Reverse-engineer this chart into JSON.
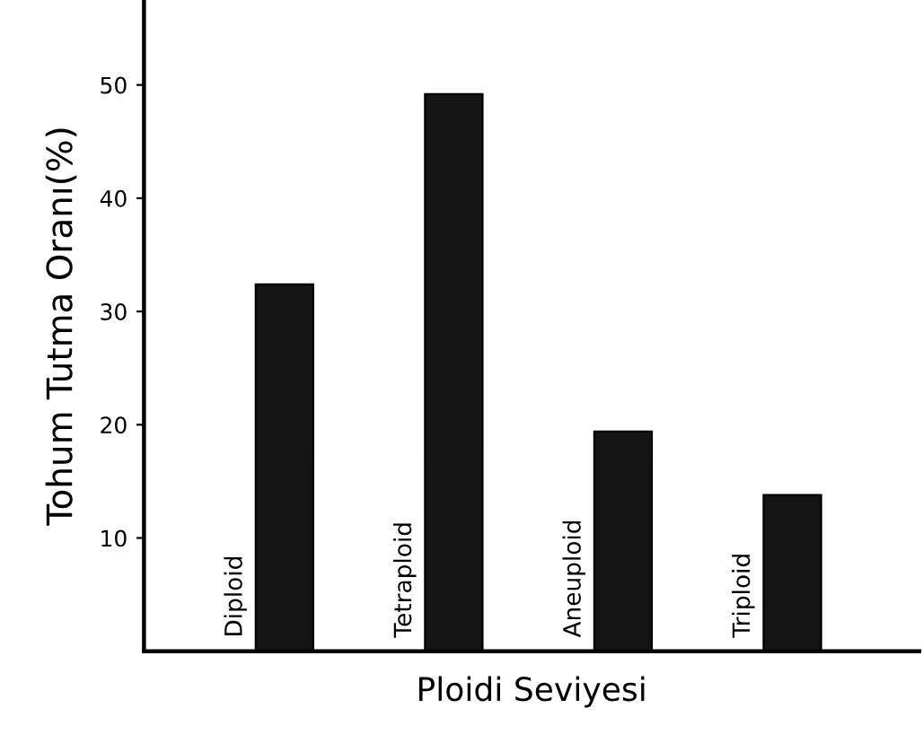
{
  "chart_data": {
    "type": "bar",
    "xlabel": "Ploidi Seviyesi",
    "ylabel": "Tohum Tutma Oranı(%)",
    "categories": [
      "Diploid",
      "Tetraploid",
      "Aneuploid",
      "Triploid"
    ],
    "values": [
      32.4,
      49.2,
      19.4,
      13.8
    ],
    "color": "#141414",
    "ylim": [
      0,
      57.5
    ],
    "yticks": [
      10,
      20,
      30,
      40,
      50
    ],
    "grid": false,
    "legend": false
  }
}
